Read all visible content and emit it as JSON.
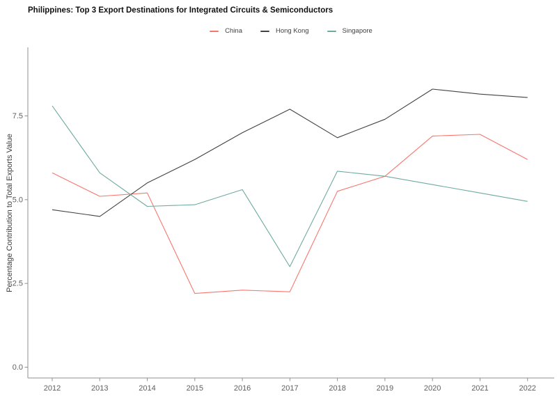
{
  "chart_data": {
    "type": "line",
    "title": "Philippines: Top 3 Export Destinations for Integrated Circuits & Semiconductors",
    "xlabel": "",
    "ylabel": "Percentage Contribution to Total Exports Value",
    "x": [
      2012,
      2013,
      2014,
      2015,
      2016,
      2017,
      2018,
      2019,
      2020,
      2021,
      2022
    ],
    "series": [
      {
        "name": "China",
        "color": "#f8766d",
        "values": [
          5.8,
          5.1,
          5.2,
          2.2,
          2.3,
          2.25,
          5.25,
          5.7,
          6.9,
          6.95,
          6.2
        ]
      },
      {
        "name": "Hong Kong",
        "color": "#424242",
        "values": [
          4.7,
          4.5,
          5.5,
          6.2,
          7.0,
          7.7,
          6.85,
          7.4,
          8.3,
          8.15,
          8.05
        ]
      },
      {
        "name": "Singapore",
        "color": "#6eaaa0",
        "values": [
          7.8,
          5.8,
          4.8,
          4.85,
          5.3,
          3.0,
          5.85,
          5.7,
          5.45,
          5.2,
          4.95
        ]
      }
    ],
    "yticks": [
      0.0,
      2.5,
      5.0,
      7.5
    ],
    "ytick_labels": [
      "0.0",
      "2.5",
      "5.0",
      "7.5"
    ],
    "ylim": [
      0,
      9.5
    ],
    "grid": false,
    "legend_position": "top-center"
  }
}
